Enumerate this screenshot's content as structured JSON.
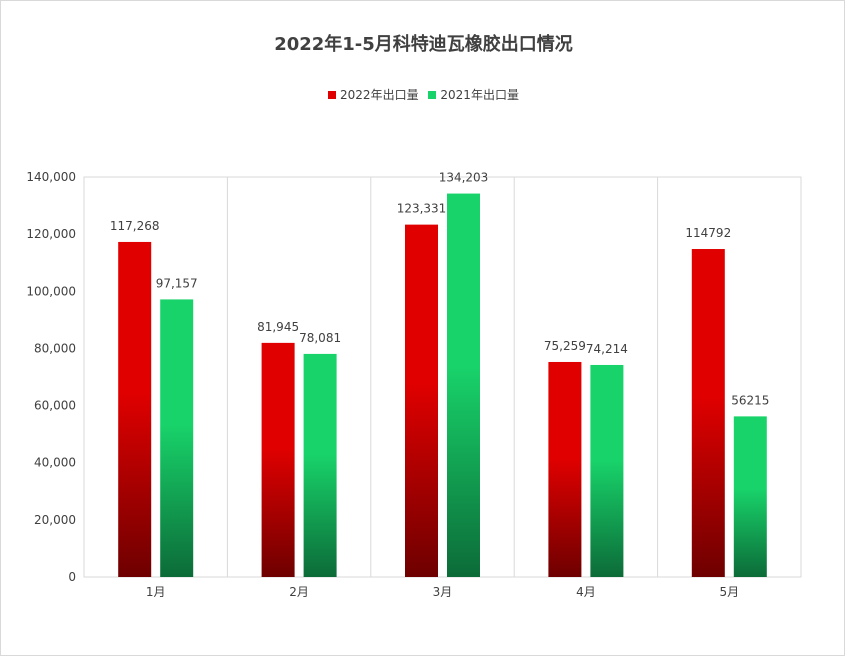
{
  "chart_data": {
    "type": "bar",
    "title": "2022年1-5月科特迪瓦橡胶出口情况",
    "categories": [
      "1月",
      "2月",
      "3月",
      "4月",
      "5月"
    ],
    "series": [
      {
        "name": "2022年出口量",
        "values": [
          117268,
          81945,
          123331,
          75259,
          114792
        ],
        "labels": [
          "117,268",
          "81,945",
          "123,331",
          "75,259",
          "114792"
        ],
        "color": "#e00000",
        "color_dark": "#6e0000"
      },
      {
        "name": "2021年出口量",
        "values": [
          97157,
          78081,
          134203,
          74214,
          56215
        ],
        "labels": [
          "97,157",
          "78,081",
          "134,203",
          "74,214",
          "56215"
        ],
        "color": "#18d36a",
        "color_dark": "#0c6b38"
      }
    ],
    "ylim": [
      0,
      140000
    ],
    "yticks": [
      "0",
      "20,000",
      "40,000",
      "60,000",
      "80,000",
      "100,000",
      "120,000",
      "140,000"
    ],
    "xlabel": "",
    "ylabel": "",
    "grid": "vertical category separators",
    "legend_position": "top-center"
  }
}
